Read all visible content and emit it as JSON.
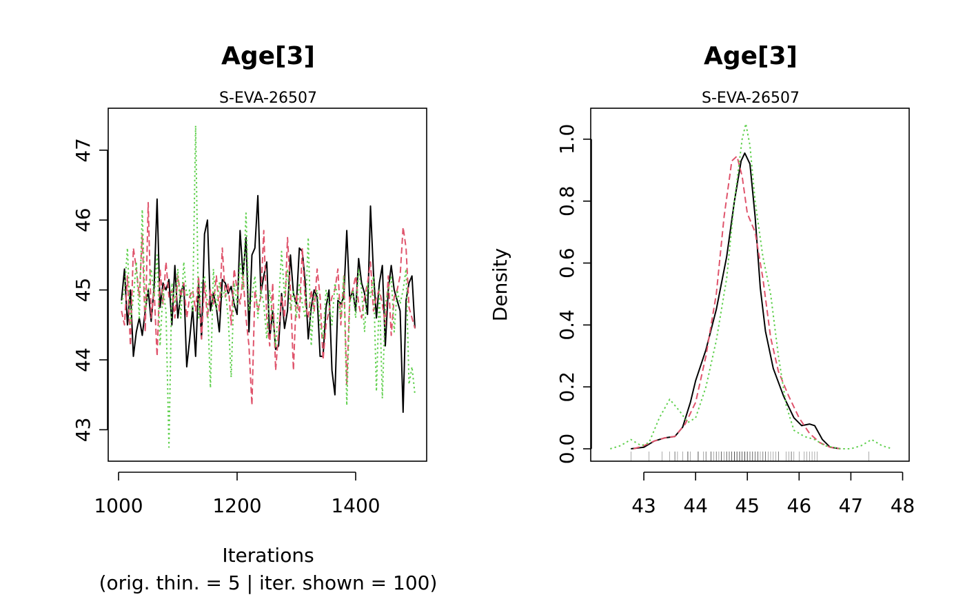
{
  "chart_data": [
    {
      "type": "line",
      "title": "Age[3]",
      "subtitle": "S-EVA-26507",
      "xlabel": "Iterations",
      "xlabel_note": "(orig. thin. = 5 | iter. shown = 100)",
      "ylabel": "",
      "xlim": [
        1000,
        1500
      ],
      "ylim": [
        42.55,
        47.6
      ],
      "x_ticks": [
        1000,
        1200,
        1400
      ],
      "y_ticks": [
        43,
        44,
        45,
        46,
        47
      ],
      "grid": false,
      "legend": "none",
      "x": [
        1005,
        1010,
        1015,
        1020,
        1025,
        1030,
        1035,
        1040,
        1045,
        1050,
        1055,
        1060,
        1065,
        1070,
        1075,
        1080,
        1085,
        1090,
        1095,
        1100,
        1105,
        1110,
        1115,
        1120,
        1125,
        1130,
        1135,
        1140,
        1145,
        1150,
        1155,
        1160,
        1165,
        1170,
        1175,
        1180,
        1185,
        1190,
        1195,
        1200,
        1205,
        1210,
        1215,
        1220,
        1225,
        1230,
        1235,
        1240,
        1245,
        1250,
        1255,
        1260,
        1265,
        1270,
        1275,
        1280,
        1285,
        1290,
        1295,
        1300,
        1305,
        1310,
        1315,
        1320,
        1325,
        1330,
        1335,
        1340,
        1345,
        1350,
        1355,
        1360,
        1365,
        1370,
        1375,
        1380,
        1385,
        1390,
        1395,
        1400,
        1405,
        1410,
        1415,
        1420,
        1425,
        1430,
        1435,
        1440,
        1445,
        1450,
        1455,
        1460,
        1465,
        1470,
        1475,
        1480,
        1485,
        1490,
        1495,
        1500
      ],
      "series": [
        {
          "color": "#000000",
          "dash": "solid",
          "values": [
            44.85,
            45.3,
            44.5,
            45.0,
            44.05,
            44.4,
            44.6,
            44.35,
            44.7,
            45.0,
            44.55,
            45.05,
            46.3,
            44.75,
            45.1,
            45.0,
            45.15,
            44.5,
            45.35,
            44.6,
            44.95,
            45.1,
            43.9,
            44.3,
            44.75,
            44.05,
            45.1,
            44.3,
            45.8,
            46.0,
            44.7,
            44.95,
            44.75,
            44.4,
            45.15,
            45.1,
            44.95,
            45.05,
            44.8,
            44.65,
            45.85,
            45.2,
            45.75,
            44.4,
            45.5,
            45.6,
            46.35,
            44.95,
            45.2,
            45.4,
            44.3,
            44.7,
            44.15,
            44.2,
            44.95,
            44.45,
            44.7,
            45.5,
            44.95,
            44.8,
            45.6,
            45.55,
            45.1,
            44.3,
            44.75,
            45.0,
            44.9,
            44.05,
            44.05,
            44.75,
            45.0,
            43.85,
            43.5,
            44.85,
            44.8,
            44.9,
            45.85,
            44.85,
            45.0,
            44.7,
            45.45,
            45.1,
            44.95,
            44.65,
            46.2,
            45.25,
            44.6,
            45.1,
            45.35,
            44.2,
            45.0,
            45.35,
            45.0,
            44.85,
            44.7,
            43.25,
            44.85,
            45.1,
            45.2,
            44.45
          ]
        },
        {
          "color": "#DF536B",
          "dash": "dashed",
          "values": [
            44.7,
            44.5,
            45.2,
            44.2,
            45.6,
            45.3,
            44.9,
            45.8,
            44.4,
            46.25,
            44.6,
            45.0,
            44.05,
            45.3,
            44.8,
            45.4,
            44.9,
            45.0,
            44.6,
            45.2,
            44.9,
            45.1,
            44.6,
            44.9,
            45.0,
            44.7,
            45.2,
            44.3,
            45.1,
            44.6,
            45.0,
            44.8,
            45.2,
            44.7,
            45.6,
            44.9,
            45.1,
            44.5,
            45.3,
            45.0,
            44.8,
            45.2,
            44.6,
            44.2,
            43.35,
            45.0,
            44.7,
            44.9,
            45.85,
            44.6,
            44.2,
            45.1,
            43.85,
            44.4,
            44.9,
            44.6,
            45.75,
            45.0,
            43.85,
            44.95,
            44.6,
            45.6,
            44.8,
            44.6,
            45.0,
            44.7,
            45.3,
            44.9,
            44.0,
            44.5,
            44.7,
            44.9,
            45.0,
            45.3,
            44.5,
            45.2,
            43.65,
            44.9,
            45.0,
            45.2,
            44.8,
            44.6,
            44.9,
            45.1,
            45.4,
            44.7,
            44.9,
            45.0,
            44.8,
            44.5,
            45.2,
            44.35,
            44.9,
            45.0,
            45.2,
            45.9,
            45.6,
            44.75,
            44.6,
            44.45
          ]
        },
        {
          "color": "#61D04F",
          "dash": "dotted",
          "values": [
            44.8,
            45.0,
            45.6,
            44.5,
            44.9,
            45.4,
            44.6,
            46.15,
            44.7,
            45.0,
            45.3,
            44.9,
            45.5,
            44.2,
            45.0,
            44.7,
            42.75,
            45.1,
            44.8,
            45.3,
            44.6,
            45.4,
            44.9,
            45.0,
            44.7,
            47.35,
            44.6,
            45.1,
            45.2,
            44.8,
            43.6,
            45.3,
            44.7,
            45.1,
            44.9,
            45.0,
            44.6,
            43.75,
            45.1,
            44.8,
            45.4,
            45.0,
            46.1,
            44.7,
            44.9,
            45.2,
            44.6,
            45.0,
            44.8,
            44.3,
            45.0,
            44.6,
            44.2,
            44.8,
            45.55,
            44.9,
            45.3,
            44.7,
            45.0,
            44.6,
            45.1,
            44.8,
            44.6,
            45.75,
            44.2,
            44.9,
            45.0,
            44.5,
            44.3,
            45.0,
            44.8,
            44.5,
            45.1,
            44.9,
            44.6,
            45.2,
            43.35,
            44.8,
            45.0,
            44.6,
            45.3,
            45.0,
            44.4,
            45.1,
            44.9,
            45.2,
            43.55,
            45.0,
            43.45,
            44.8,
            45.0,
            45.2,
            44.4,
            45.0,
            44.8,
            45.0,
            45.3,
            43.65,
            43.9,
            43.5
          ]
        }
      ]
    },
    {
      "type": "line",
      "title": "Age[3]",
      "subtitle": "S-EVA-26507",
      "xlabel": "",
      "ylabel": "Density",
      "xlim": [
        42.2,
        47.9
      ],
      "ylim": [
        -0.04,
        1.1
      ],
      "x_ticks": [
        43,
        44,
        45,
        46,
        47,
        48
      ],
      "y_ticks": [
        0.0,
        0.2,
        0.4,
        0.6,
        0.8,
        1.0
      ],
      "y_tick_labels": [
        "0.0",
        "0.2",
        "0.4",
        "0.6",
        "0.8",
        "1.0"
      ],
      "grid": false,
      "legend": "none",
      "series": [
        {
          "color": "#000000",
          "dash": "solid",
          "points": [
            [
              42.75,
              0.0
            ],
            [
              43.0,
              0.005
            ],
            [
              43.2,
              0.025
            ],
            [
              43.4,
              0.035
            ],
            [
              43.6,
              0.04
            ],
            [
              43.75,
              0.07
            ],
            [
              43.9,
              0.15
            ],
            [
              44.0,
              0.22
            ],
            [
              44.2,
              0.32
            ],
            [
              44.4,
              0.45
            ],
            [
              44.6,
              0.62
            ],
            [
              44.75,
              0.8
            ],
            [
              44.88,
              0.93
            ],
            [
              44.95,
              0.955
            ],
            [
              45.05,
              0.92
            ],
            [
              45.15,
              0.75
            ],
            [
              45.25,
              0.52
            ],
            [
              45.35,
              0.38
            ],
            [
              45.5,
              0.26
            ],
            [
              45.7,
              0.17
            ],
            [
              45.9,
              0.1
            ],
            [
              46.05,
              0.075
            ],
            [
              46.2,
              0.08
            ],
            [
              46.3,
              0.075
            ],
            [
              46.45,
              0.03
            ],
            [
              46.6,
              0.005
            ],
            [
              46.8,
              0.0
            ]
          ]
        },
        {
          "color": "#DF536B",
          "dash": "dashed",
          "points": [
            [
              42.8,
              0.0
            ],
            [
              43.0,
              0.01
            ],
            [
              43.2,
              0.025
            ],
            [
              43.4,
              0.035
            ],
            [
              43.6,
              0.04
            ],
            [
              43.8,
              0.08
            ],
            [
              44.0,
              0.15
            ],
            [
              44.2,
              0.3
            ],
            [
              44.4,
              0.5
            ],
            [
              44.55,
              0.75
            ],
            [
              44.7,
              0.93
            ],
            [
              44.8,
              0.945
            ],
            [
              44.9,
              0.88
            ],
            [
              45.0,
              0.76
            ],
            [
              45.15,
              0.7
            ],
            [
              45.3,
              0.55
            ],
            [
              45.45,
              0.36
            ],
            [
              45.6,
              0.25
            ],
            [
              45.8,
              0.17
            ],
            [
              46.0,
              0.1
            ],
            [
              46.2,
              0.05
            ],
            [
              46.4,
              0.02
            ],
            [
              46.6,
              0.005
            ],
            [
              46.8,
              0.0
            ]
          ]
        },
        {
          "color": "#61D04F",
          "dash": "dotted",
          "points": [
            [
              42.35,
              0.0
            ],
            [
              42.55,
              0.01
            ],
            [
              42.75,
              0.03
            ],
            [
              42.95,
              0.01
            ],
            [
              43.1,
              0.02
            ],
            [
              43.3,
              0.1
            ],
            [
              43.5,
              0.16
            ],
            [
              43.7,
              0.12
            ],
            [
              43.85,
              0.085
            ],
            [
              44.0,
              0.1
            ],
            [
              44.2,
              0.2
            ],
            [
              44.4,
              0.35
            ],
            [
              44.6,
              0.55
            ],
            [
              44.75,
              0.8
            ],
            [
              44.9,
              1.0
            ],
            [
              44.97,
              1.05
            ],
            [
              45.05,
              0.98
            ],
            [
              45.15,
              0.8
            ],
            [
              45.3,
              0.62
            ],
            [
              45.45,
              0.5
            ],
            [
              45.6,
              0.3
            ],
            [
              45.75,
              0.14
            ],
            [
              45.9,
              0.06
            ],
            [
              46.1,
              0.04
            ],
            [
              46.3,
              0.03
            ],
            [
              46.5,
              0.01
            ],
            [
              46.8,
              0.0
            ],
            [
              47.0,
              0.0
            ],
            [
              47.2,
              0.01
            ],
            [
              47.4,
              0.03
            ],
            [
              47.6,
              0.01
            ],
            [
              47.8,
              0.0
            ]
          ]
        }
      ],
      "rug": [
        42.75,
        43.1,
        43.35,
        43.5,
        43.6,
        43.6,
        43.65,
        43.75,
        43.85,
        43.85,
        43.85,
        43.9,
        44.05,
        44.05,
        44.05,
        44.15,
        44.2,
        44.2,
        44.3,
        44.3,
        44.3,
        44.35,
        44.4,
        44.4,
        44.45,
        44.5,
        44.5,
        44.5,
        44.55,
        44.6,
        44.6,
        44.6,
        44.65,
        44.65,
        44.7,
        44.7,
        44.7,
        44.75,
        44.75,
        44.75,
        44.8,
        44.8,
        44.8,
        44.8,
        44.85,
        44.85,
        44.85,
        44.9,
        44.9,
        44.9,
        44.95,
        44.95,
        44.95,
        45.0,
        45.0,
        45.0,
        45.0,
        45.05,
        45.05,
        45.1,
        45.1,
        45.1,
        45.15,
        45.15,
        45.2,
        45.2,
        45.2,
        45.25,
        45.3,
        45.3,
        45.35,
        45.35,
        45.4,
        45.45,
        45.5,
        45.55,
        45.6,
        45.6,
        45.75,
        45.8,
        45.85,
        45.85,
        45.9,
        46.0,
        46.1,
        46.15,
        46.2,
        46.25,
        46.3,
        46.35,
        47.35
      ]
    }
  ]
}
